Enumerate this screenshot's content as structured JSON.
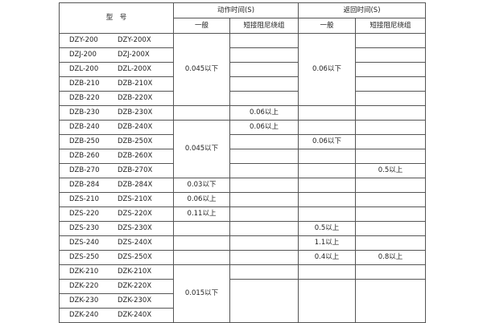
{
  "header": {
    "model": "型　号",
    "action_time": "动作时间(S)",
    "return_time": "返回时间(S)",
    "general": "一般",
    "short_winding": "短接阻尼绕组"
  },
  "rows": [
    {
      "model_a": "DZY-200",
      "model_b": "DZY-200X",
      "action_general": "0.045以下",
      "action_short": "",
      "return_general": "0.06以下",
      "return_short": ""
    },
    {
      "model_a": "DZJ-200",
      "model_b": "DZJ-200X",
      "action_short": "",
      "return_short": ""
    },
    {
      "model_a": "DZL-200",
      "model_b": "DZL-200X",
      "action_short": "",
      "return_short": ""
    },
    {
      "model_a": "DZB-210",
      "model_b": "DZB-210X",
      "action_short": "",
      "return_short": ""
    },
    {
      "model_a": "DZB-220",
      "model_b": "DZB-220X",
      "action_short": "",
      "return_short": ""
    },
    {
      "model_a": "DZB-230",
      "model_b": "DZB-230X",
      "action_general": "",
      "action_short": "0.06以上",
      "return_general": "",
      "return_short": ""
    },
    {
      "model_a": "DZB-240",
      "model_b": "DZB-240X",
      "action_general": "0.045以下",
      "action_short": "0.06以上",
      "return_general": "",
      "return_short": ""
    },
    {
      "model_a": "DZB-250",
      "model_b": "DZB-250X",
      "action_short": "",
      "return_general": "0.06以下",
      "return_short": ""
    },
    {
      "model_a": "DZB-260",
      "model_b": "DZB-260X",
      "action_short": "",
      "return_general": "",
      "return_short": ""
    },
    {
      "model_a": "DZB-270",
      "model_b": "DZB-270X",
      "action_short": "",
      "return_general": "",
      "return_short": "0.5以上"
    },
    {
      "model_a": "DZB-284",
      "model_b": "DZB-284X",
      "action_general": "0.03以下",
      "action_short": "",
      "return_general": "",
      "return_short": ""
    },
    {
      "model_a": "DZS-210",
      "model_b": "DZS-210X",
      "action_general": "0.06以上",
      "action_short": "",
      "return_general": "",
      "return_short": ""
    },
    {
      "model_a": "DZS-220",
      "model_b": "DZS-220X",
      "action_general": "0.11以上",
      "action_short": "",
      "return_general": "",
      "return_short": ""
    },
    {
      "model_a": "DZS-230",
      "model_b": "DZS-230X",
      "action_general": "",
      "action_short": "",
      "return_general": "0.5以上",
      "return_short": ""
    },
    {
      "model_a": "DZS-240",
      "model_b": "DZS-240X",
      "action_general": "",
      "action_short": "",
      "return_general": "1.1以上",
      "return_short": ""
    },
    {
      "model_a": "DZS-250",
      "model_b": "DZS-250X",
      "action_general": "",
      "action_short": "",
      "return_general": "0.4以上",
      "return_short": "0.8以上"
    },
    {
      "model_a": "DZK-210",
      "model_b": "DZK-210X",
      "action_general": "0.015以下",
      "action_short": "",
      "return_general": "",
      "return_short": ""
    },
    {
      "model_a": "DZK-220",
      "model_b": "DZK-220X",
      "action_short": "",
      "return_general": "",
      "return_short": ""
    },
    {
      "model_a": "DZK-230",
      "model_b": "DZK-230X"
    },
    {
      "model_a": "DZK-240",
      "model_b": "DZK-240X"
    }
  ]
}
